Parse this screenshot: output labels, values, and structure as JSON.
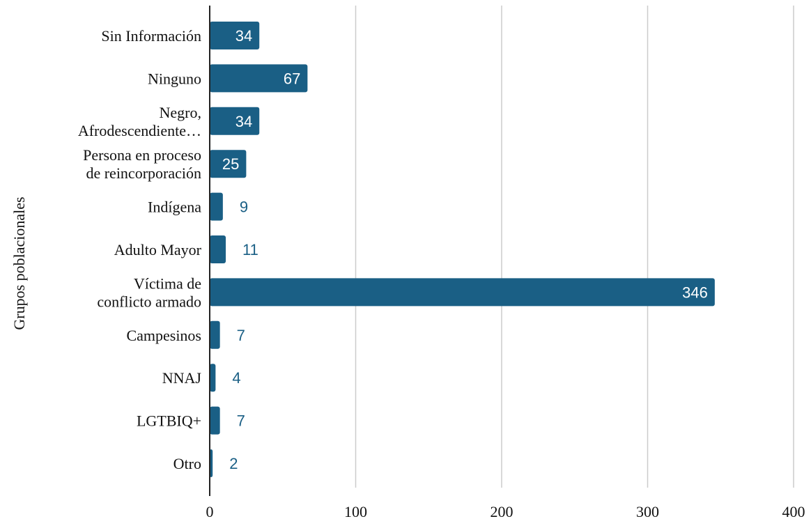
{
  "chart_data": {
    "type": "bar",
    "orientation": "horizontal",
    "categories": [
      "Sin Información",
      "Ninguno",
      "Negro, Afrodescendiente…",
      "Persona en proceso de reincorporación",
      "Indígena",
      "Adulto Mayor",
      "Víctima de conflicto armado",
      "Campesinos",
      "NNAJ",
      "LGTBIQ+",
      "Otro"
    ],
    "category_lines": [
      [
        "Sin Información"
      ],
      [
        "Ninguno"
      ],
      [
        "Negro,",
        "Afrodescendiente…"
      ],
      [
        "Persona en proceso",
        "de reincorporación"
      ],
      [
        "Indígena"
      ],
      [
        "Adulto Mayor"
      ],
      [
        "Víctima de",
        "conflicto armado"
      ],
      [
        "Campesinos"
      ],
      [
        "NNAJ"
      ],
      [
        "LGTBIQ+"
      ],
      [
        "Otro"
      ]
    ],
    "values": [
      34,
      67,
      34,
      25,
      9,
      11,
      346,
      7,
      4,
      7,
      2
    ],
    "xlim": [
      0,
      400
    ],
    "xticks": [
      0,
      100,
      200,
      300,
      400
    ],
    "ylabel": "Grupos poblacionales",
    "xlabel": "",
    "title": "",
    "grid": "vertical",
    "legend": "none",
    "bar_color": "#1a5f85",
    "grid_color": "#cccccc",
    "axis_color": "#222222"
  }
}
